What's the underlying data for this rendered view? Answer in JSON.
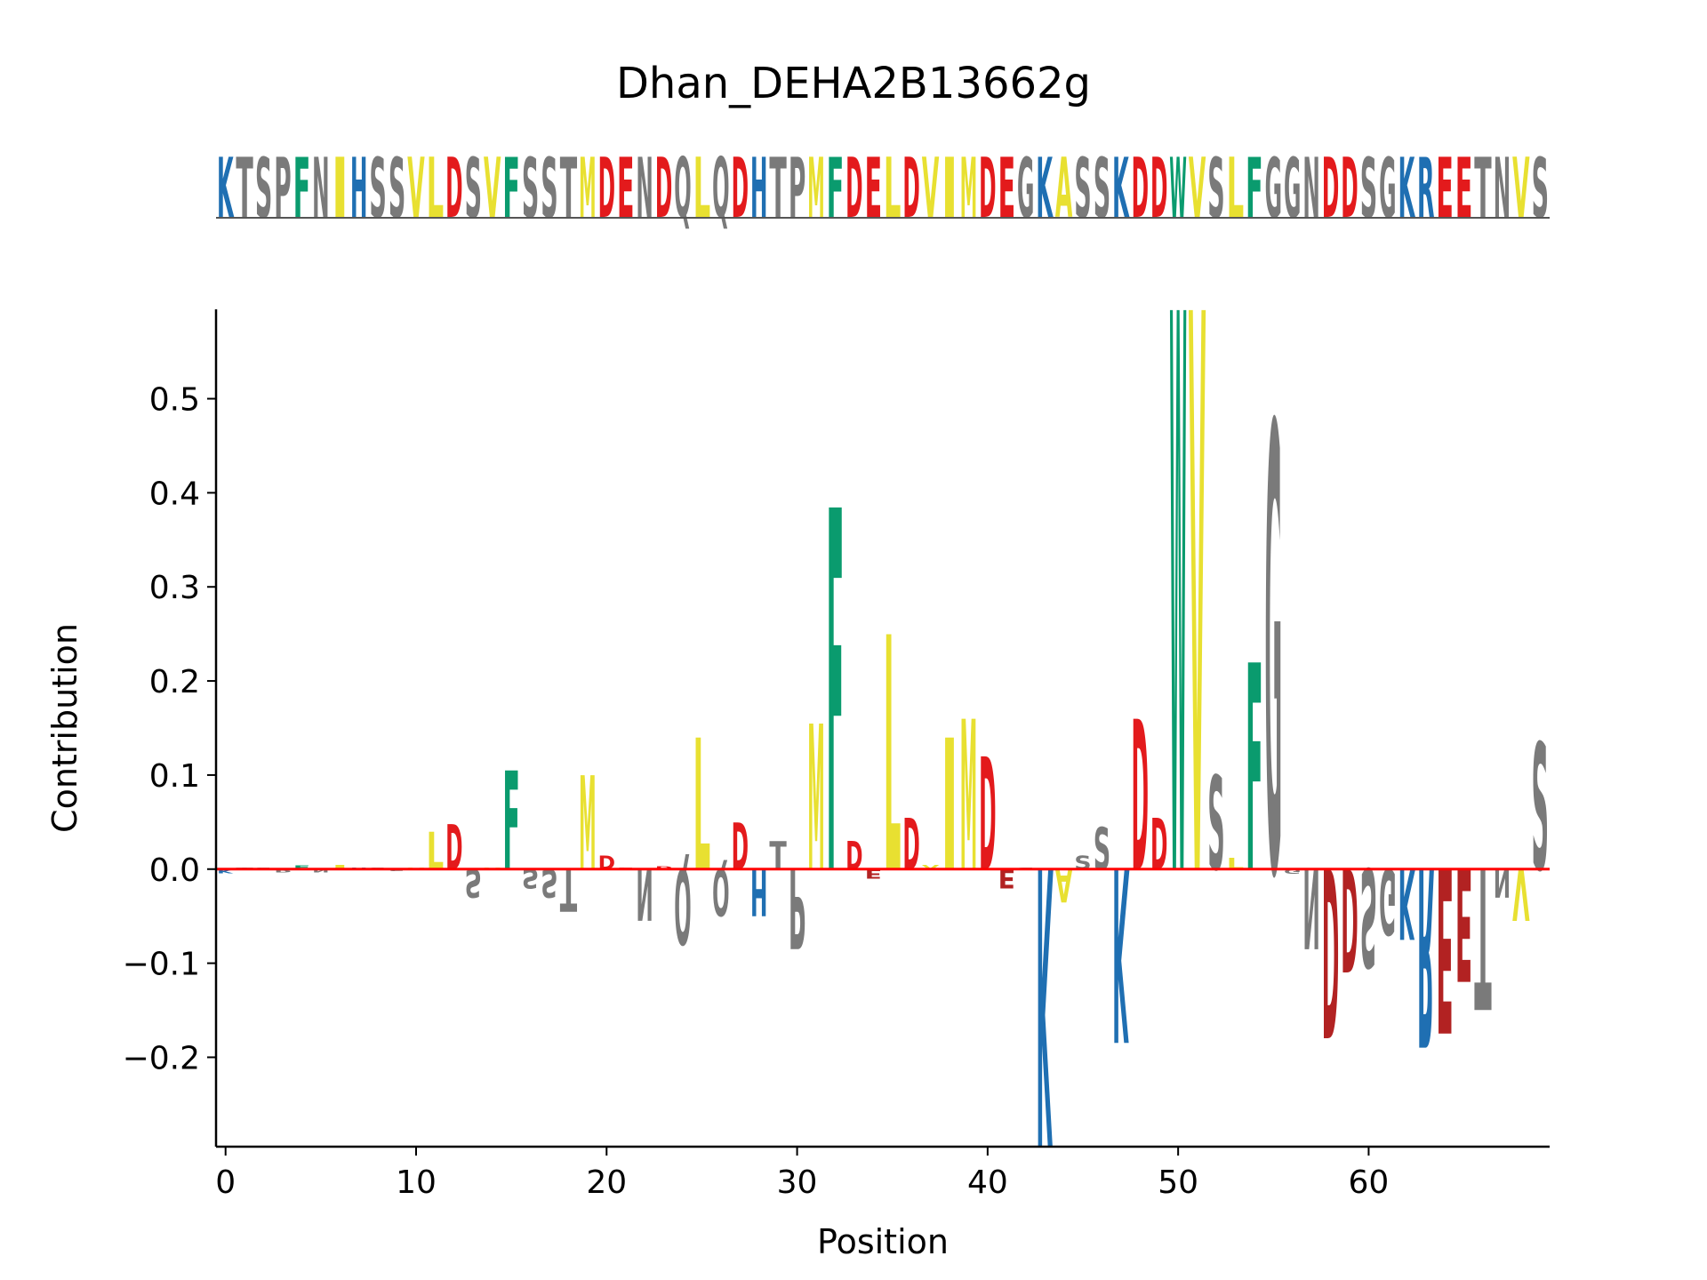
{
  "title": "Dhan_DEHA2B13662g",
  "colors": {
    "acidic": "#e31a1c",
    "acidic_negative": "#b22222",
    "basic": "#1f6fb2",
    "hydrophobic": "#e8e031",
    "aromatic": "#0a9b6e",
    "polar": "#7a7a7a",
    "zero_line": "#ff0000"
  },
  "chart_data": {
    "type": "sequence-logo",
    "sequence": "KTSPFNIHSSVLDSVFSSTMDENDQLQDHTPMFDELDVIMDEGKASSKDDWVSLFGGNDDSGKREETNVS",
    "xlabel": "Position",
    "ylabel": "Contribution",
    "xlim": [
      -0.5,
      69.5
    ],
    "ylim": [
      -0.295,
      0.595
    ],
    "xticks": [
      0,
      10,
      20,
      30,
      40,
      50,
      60
    ],
    "yticks": [
      -0.2,
      -0.1,
      0.0,
      0.1,
      0.2,
      0.3,
      0.4,
      0.5
    ],
    "ytick_labels": [
      "−0.2",
      "−0.1",
      "0.0",
      "0.1",
      "0.2",
      "0.3",
      "0.4",
      "0.5"
    ],
    "contributions": [
      -0.004,
      0.002,
      0.002,
      -0.003,
      0.004,
      -0.003,
      0.005,
      0.002,
      0.002,
      -0.002,
      0.002,
      0.04,
      0.048,
      -0.03,
      0.002,
      0.105,
      -0.02,
      -0.03,
      -0.045,
      0.1,
      0.015,
      0.002,
      -0.055,
      0.003,
      -0.08,
      0.14,
      -0.05,
      0.05,
      -0.05,
      0.03,
      -0.085,
      0.155,
      0.385,
      0.03,
      -0.01,
      0.25,
      0.055,
      0.005,
      0.14,
      0.16,
      0.12,
      -0.02,
      0.002,
      -0.295,
      -0.035,
      0.015,
      0.045,
      -0.185,
      0.16,
      0.055,
      0.595,
      0.595,
      0.1,
      0.012,
      0.22,
      0.475,
      -0.005,
      -0.085,
      -0.18,
      -0.11,
      -0.105,
      -0.07,
      -0.075,
      -0.19,
      -0.175,
      -0.12,
      -0.15,
      -0.03,
      -0.055,
      0.135
    ]
  }
}
